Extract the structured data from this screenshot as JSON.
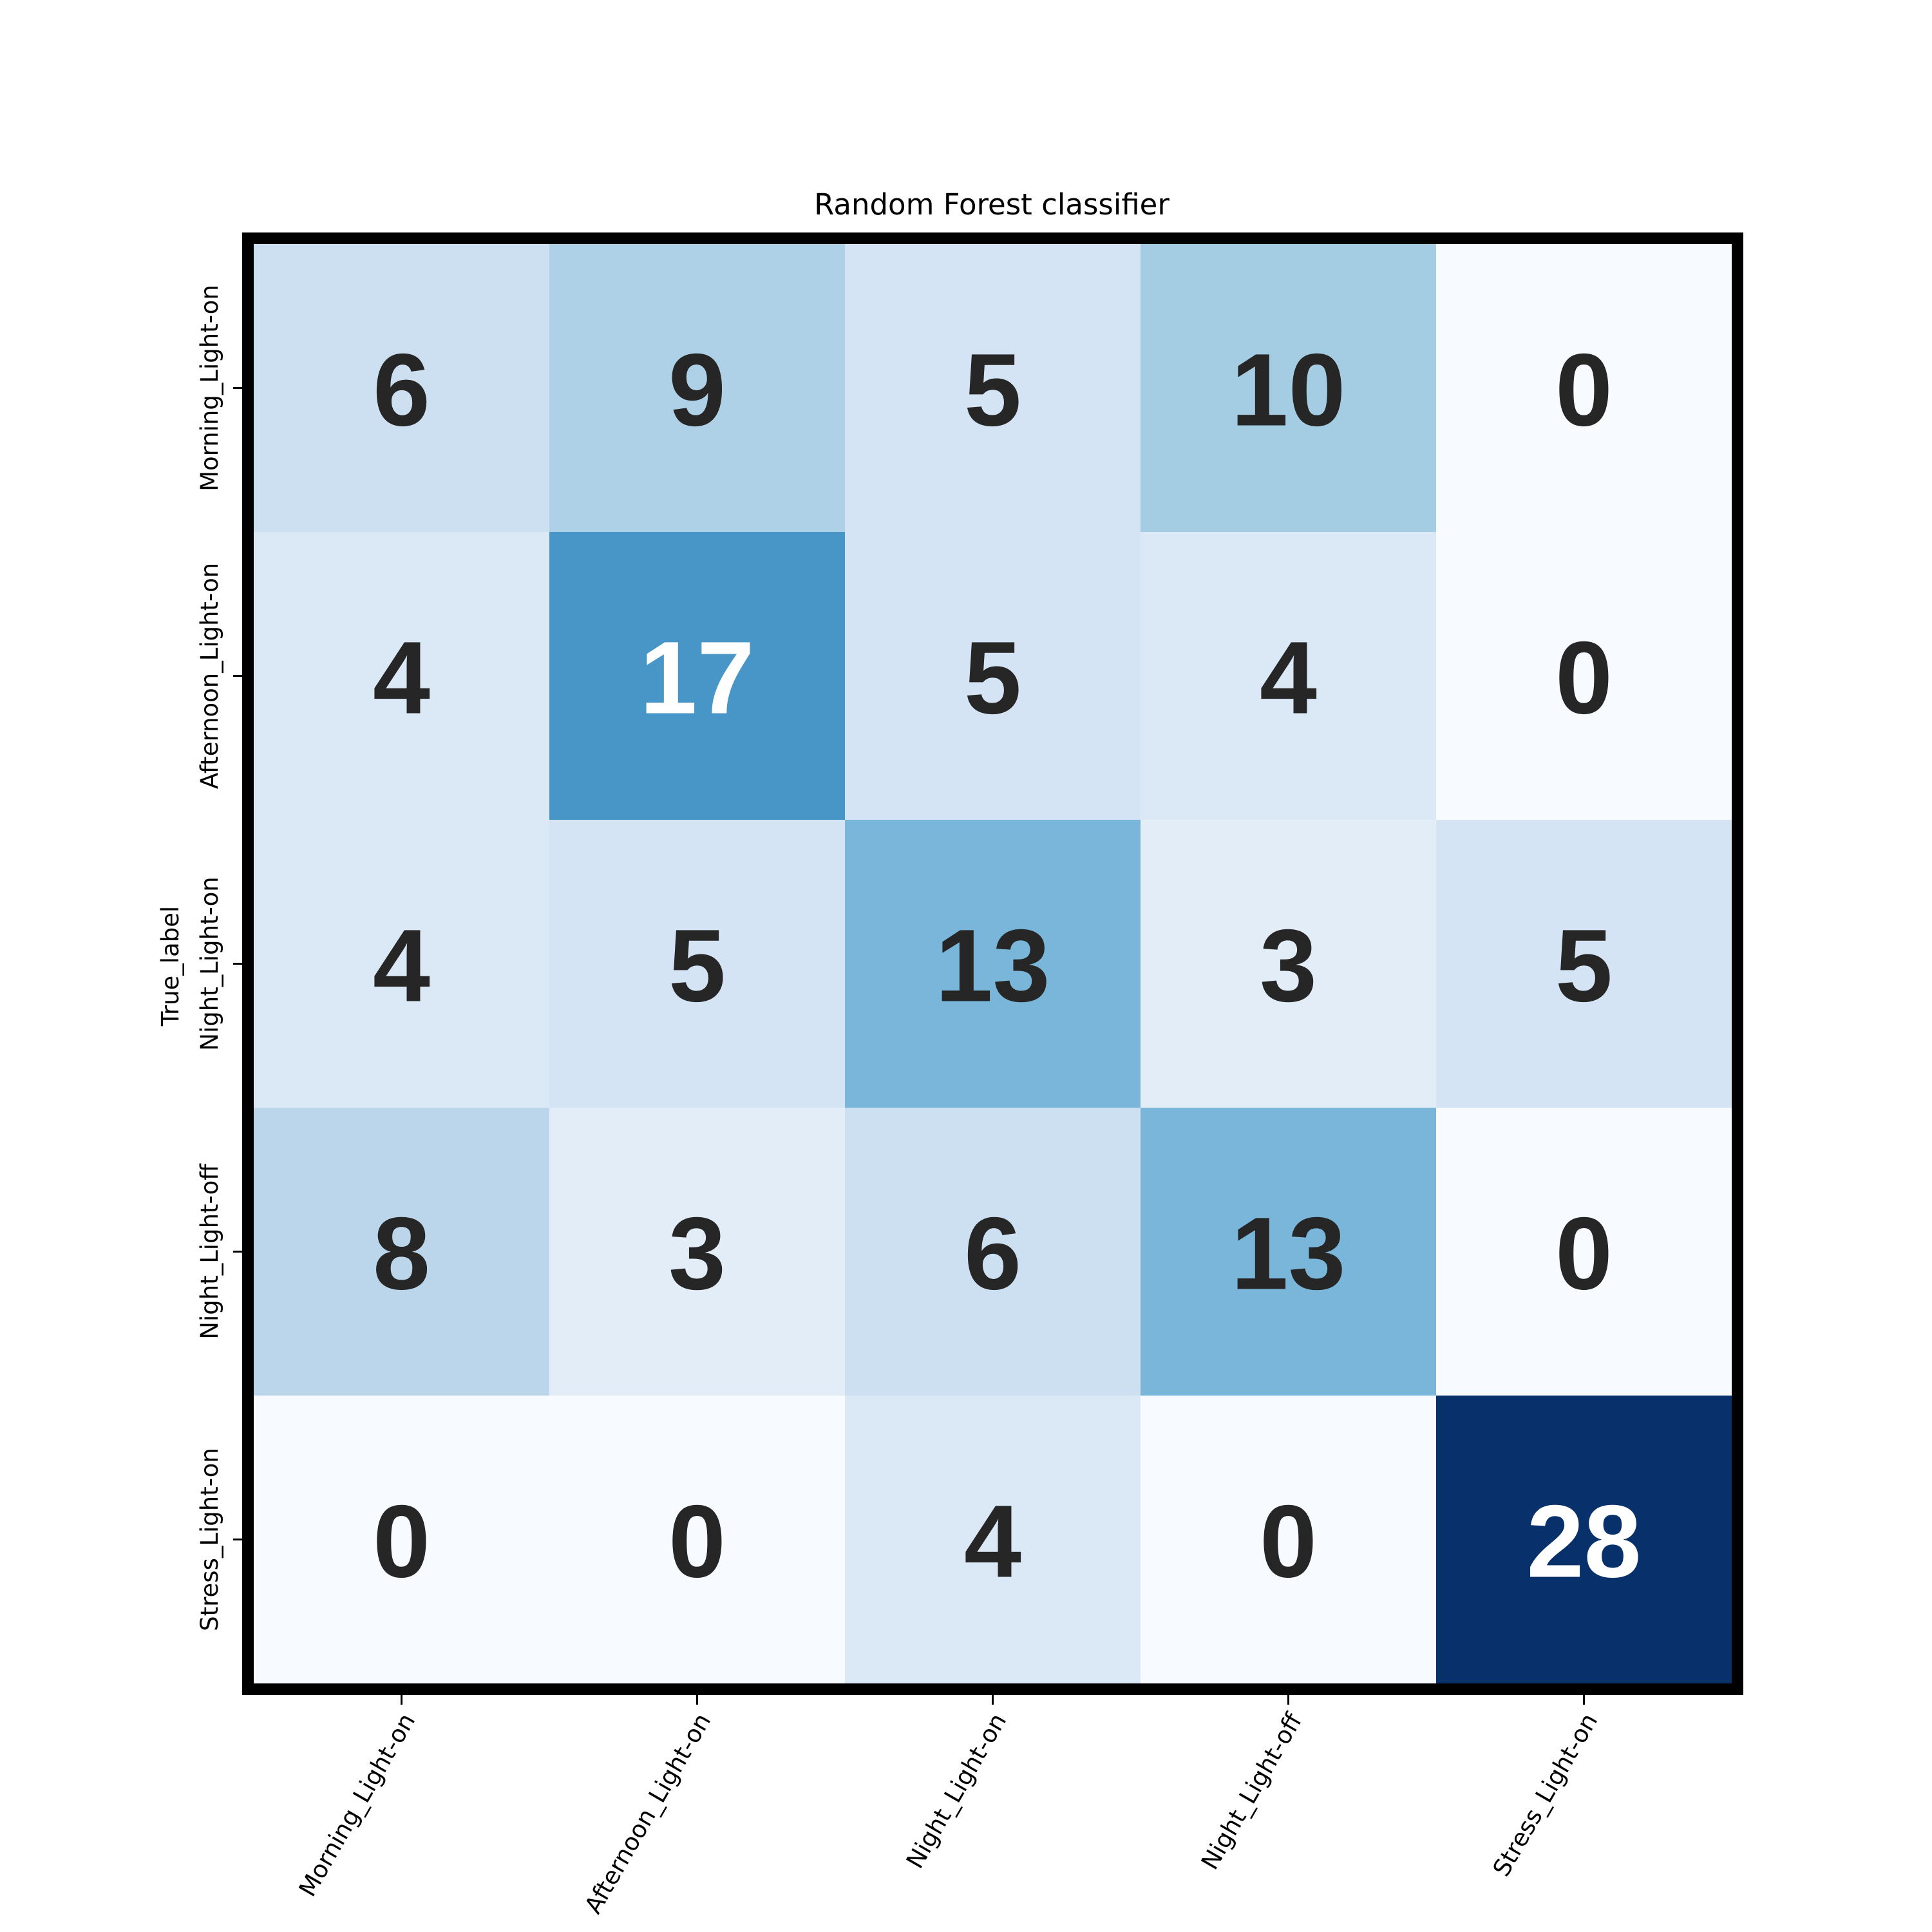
{
  "chart_data": {
    "type": "heatmap",
    "title": "Random Forest classifier",
    "ylabel": "True_label",
    "xlabel": "",
    "x_categories": [
      "Morning_Light-on",
      "Afternoon_Light-on",
      "Night_Light-on",
      "Night_Light-off",
      "Stress_Light-on"
    ],
    "y_categories": [
      "Morning_Light-on",
      "Afternoon_Light-on",
      "Night_Light-on",
      "Night_Light-off",
      "Stress_Light-on"
    ],
    "values": [
      [
        6,
        9,
        5,
        10,
        0
      ],
      [
        4,
        17,
        5,
        4,
        0
      ],
      [
        4,
        5,
        13,
        3,
        5
      ],
      [
        8,
        3,
        6,
        13,
        0
      ],
      [
        0,
        0,
        4,
        0,
        28
      ]
    ],
    "colormap": "Blues",
    "vmin": 0,
    "vmax": 28,
    "dark_text_color": "#262626",
    "light_text_color": "#ffffff",
    "frame_color": "#000000"
  }
}
